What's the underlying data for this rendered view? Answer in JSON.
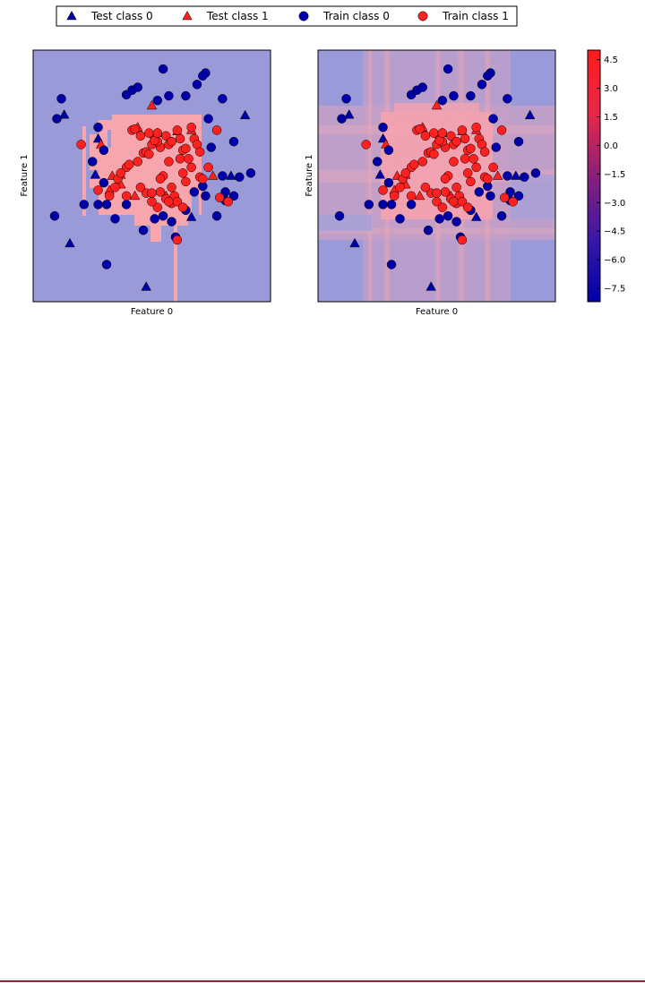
{
  "colors": {
    "class0": "#0000aa",
    "class1": "#ff2020",
    "region0": "#9a9ad8",
    "region1": "#f8a6ae",
    "bottom_rule": "#8a2a2a"
  },
  "legend": {
    "items": [
      {
        "label": "Test class 0",
        "marker": "triangle",
        "cls": 0
      },
      {
        "label": "Test class 1",
        "marker": "triangle",
        "cls": 1
      },
      {
        "label": "Train class 0",
        "marker": "circle",
        "cls": 0
      },
      {
        "label": "Train class 1",
        "marker": "circle",
        "cls": 1
      }
    ]
  },
  "chart_data": [
    {
      "type": "scatter",
      "xlabel": "Feature 0",
      "ylabel": "Feature 1",
      "background": "decision regions (binary)",
      "grid": false,
      "series": [
        {
          "name": "Test class 0",
          "marker": "triangle",
          "points": [
            [
              -1.55,
              1.07
            ],
            [
              -1.45,
              -1.18
            ],
            [
              -0.95,
              0.65
            ],
            [
              -1.0,
              0.02
            ],
            [
              0.1,
              0.75
            ],
            [
              1.4,
              0.0
            ],
            [
              1.65,
              1.06
            ],
            [
              -0.1,
              -1.94
            ],
            [
              0.7,
              -0.72
            ]
          ]
        },
        {
          "name": "Test class 1",
          "marker": "triangle",
          "points": [
            [
              0.0,
              1.23
            ],
            [
              -0.9,
              0.55
            ],
            [
              -0.55,
              -0.15
            ],
            [
              -0.7,
              0.0
            ],
            [
              -0.25,
              0.85
            ],
            [
              -0.55,
              0.02
            ],
            [
              0.05,
              0.72
            ],
            [
              0.45,
              0.78
            ],
            [
              1.08,
              0.0
            ],
            [
              0.25,
              -0.35
            ],
            [
              -0.3,
              -0.35
            ],
            [
              -0.75,
              -0.25
            ],
            [
              0.7,
              0.8
            ]
          ]
        },
        {
          "name": "Train class 0",
          "marker": "circle",
          "points": [
            [
              -0.8,
              -1.55
            ],
            [
              -1.2,
              -0.5
            ],
            [
              -1.6,
              1.35
            ],
            [
              -1.72,
              -0.7
            ],
            [
              -1.68,
              1.0
            ],
            [
              -0.45,
              1.42
            ],
            [
              -0.35,
              1.5
            ],
            [
              -0.25,
              1.55
            ],
            [
              0.1,
              1.32
            ],
            [
              0.2,
              1.87
            ],
            [
              0.3,
              1.4
            ],
            [
              0.6,
              1.4
            ],
            [
              0.8,
              1.6
            ],
            [
              0.95,
              1.8
            ],
            [
              0.9,
              1.75
            ],
            [
              1.05,
              0.5
            ],
            [
              1.0,
              1.0
            ],
            [
              1.25,
              1.35
            ],
            [
              1.45,
              0.6
            ],
            [
              1.25,
              0.0
            ],
            [
              1.55,
              -0.02
            ],
            [
              1.75,
              0.05
            ],
            [
              0.9,
              -0.18
            ],
            [
              0.95,
              -0.35
            ],
            [
              1.15,
              -0.7
            ],
            [
              1.3,
              -0.43
            ],
            [
              0.35,
              -0.8
            ],
            [
              0.05,
              -0.75
            ],
            [
              -0.15,
              -0.95
            ],
            [
              -0.95,
              -0.5
            ],
            [
              -1.05,
              0.25
            ],
            [
              -0.8,
              -0.5
            ],
            [
              -0.45,
              -0.5
            ],
            [
              -0.65,
              -0.75
            ],
            [
              -0.85,
              0.45
            ],
            [
              -0.85,
              -0.12
            ],
            [
              0.42,
              -1.07
            ],
            [
              0.6,
              -0.6
            ],
            [
              0.75,
              -0.28
            ],
            [
              0.2,
              -0.7
            ],
            [
              1.3,
              -0.28
            ],
            [
              1.45,
              -0.35
            ],
            [
              -0.95,
              0.85
            ]
          ]
        },
        {
          "name": "Train class 1",
          "marker": "circle",
          "points": [
            [
              -1.25,
              0.55
            ],
            [
              -0.95,
              -0.25
            ],
            [
              -0.6,
              -0.05
            ],
            [
              -0.65,
              -0.2
            ],
            [
              -0.45,
              0.15
            ],
            [
              -0.55,
              0.05
            ],
            [
              -0.4,
              0.2
            ],
            [
              -0.35,
              0.8
            ],
            [
              -0.3,
              0.82
            ],
            [
              -0.2,
              0.7
            ],
            [
              -0.15,
              0.4
            ],
            [
              -0.1,
              0.42
            ],
            [
              -0.05,
              0.38
            ],
            [
              0.0,
              0.55
            ],
            [
              -0.25,
              0.25
            ],
            [
              0.15,
              0.5
            ],
            [
              0.1,
              0.6
            ],
            [
              0.05,
              0.62
            ],
            [
              0.25,
              0.7
            ],
            [
              0.3,
              0.55
            ],
            [
              0.45,
              0.8
            ],
            [
              0.55,
              0.45
            ],
            [
              0.5,
              0.3
            ],
            [
              0.6,
              0.48
            ],
            [
              0.5,
              0.65
            ],
            [
              0.35,
              0.6
            ],
            [
              0.3,
              0.25
            ],
            [
              0.2,
              0.0
            ],
            [
              0.15,
              -0.05
            ],
            [
              0.35,
              -0.2
            ],
            [
              0.6,
              -0.1
            ],
            [
              0.55,
              0.05
            ],
            [
              0.35,
              -0.48
            ],
            [
              0.4,
              -0.35
            ],
            [
              0.25,
              -0.4
            ],
            [
              0.3,
              -0.45
            ],
            [
              0.45,
              -0.45
            ],
            [
              0.55,
              -0.55
            ],
            [
              0.15,
              -0.28
            ],
            [
              0.1,
              -0.55
            ],
            [
              -0.1,
              -0.3
            ],
            [
              -0.2,
              -0.2
            ],
            [
              0.0,
              -0.3
            ],
            [
              -0.45,
              -0.35
            ],
            [
              0.7,
              0.85
            ],
            [
              0.75,
              0.65
            ],
            [
              0.8,
              0.55
            ],
            [
              0.85,
              0.42
            ],
            [
              0.65,
              0.3
            ],
            [
              0.7,
              0.15
            ],
            [
              0.85,
              -0.02
            ],
            [
              0.9,
              -0.05
            ],
            [
              0.45,
              -1.12
            ],
            [
              0.0,
              -0.45
            ],
            [
              -0.05,
              0.75
            ],
            [
              0.1,
              0.75
            ],
            [
              -0.75,
              -0.35
            ],
            [
              1.15,
              0.8
            ],
            [
              1.35,
              -0.45
            ],
            [
              1.0,
              0.15
            ],
            [
              1.2,
              -0.38
            ]
          ]
        }
      ]
    },
    {
      "type": "scatter",
      "xlabel": "Feature 0",
      "ylabel": "Feature 1",
      "background": "decision function values (continuous)",
      "grid": false,
      "colorbar": {
        "ticks": [
          "4.5",
          "3.0",
          "1.5",
          "0.0",
          "−1.5",
          "−3.0",
          "−4.5",
          "−6.0",
          "−7.5"
        ],
        "tick_values": [
          4.5,
          3.0,
          1.5,
          0.0,
          -1.5,
          -3.0,
          -4.5,
          -6.0,
          -7.5
        ],
        "range": [
          -8.2,
          5.0
        ]
      }
    }
  ]
}
